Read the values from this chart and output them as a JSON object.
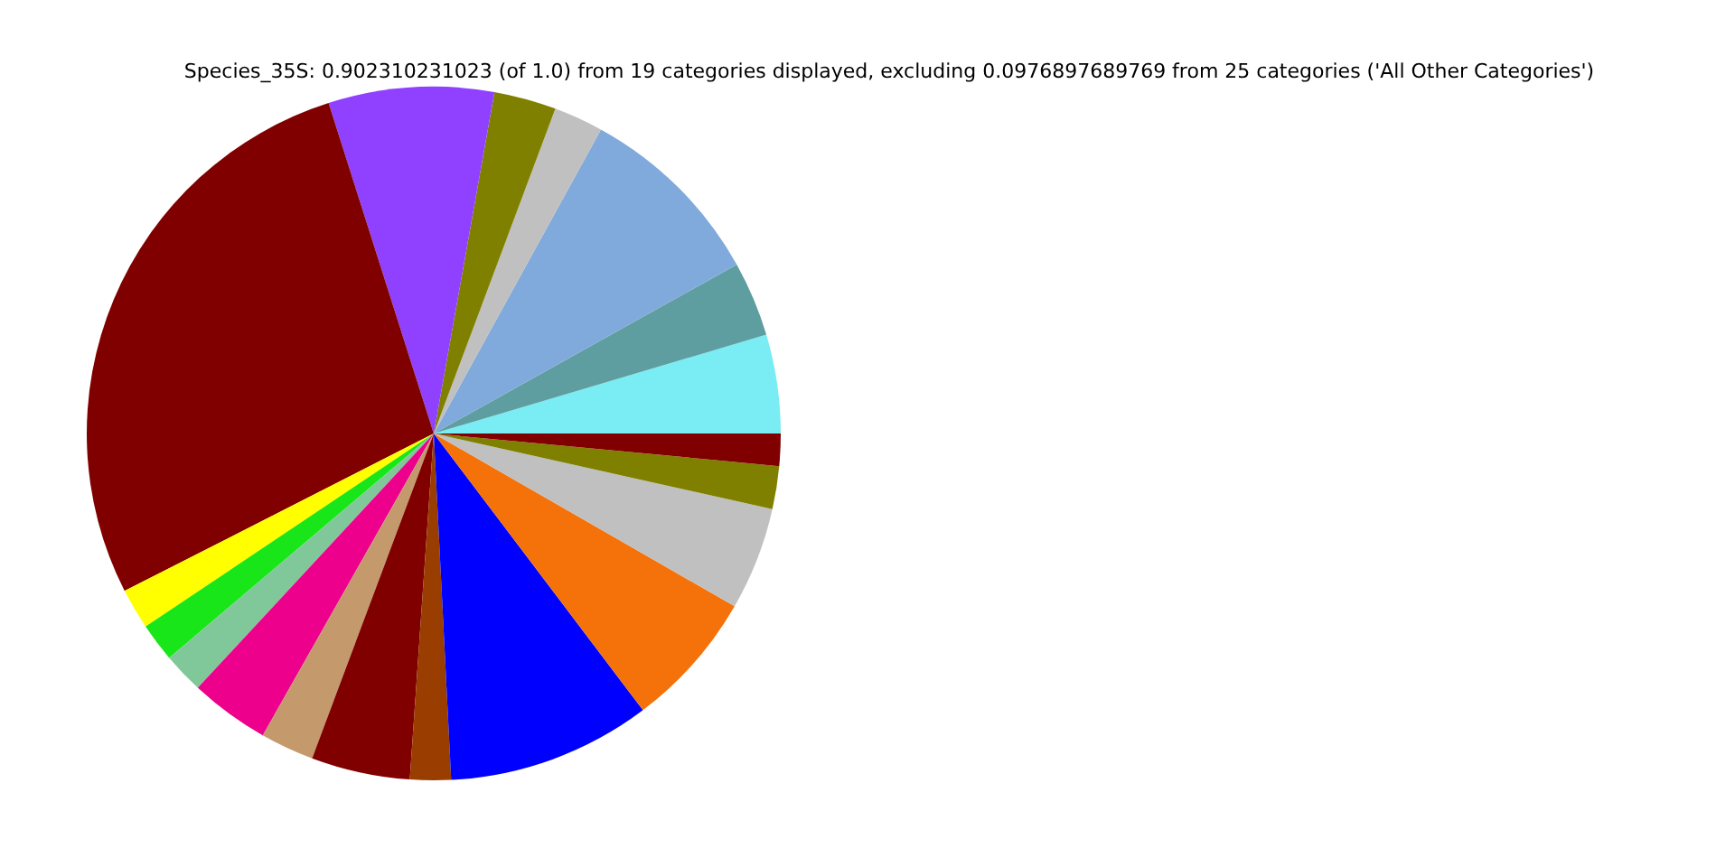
{
  "chart_data": {
    "type": "pie",
    "title": "Species_35S: 0.902310231023 (of 1.0) from 19 categories displayed, excluding 0.0976897689769 from 25 categories ('All Other Categories')",
    "categories": [
      null,
      null,
      null,
      null,
      null,
      null,
      null,
      null,
      null,
      null,
      null,
      null,
      null,
      null,
      null,
      null,
      null,
      null,
      null
    ],
    "values": [
      4.6,
      3.5,
      8.9,
      2.3,
      2.9,
      7.7,
      27.6,
      1.9,
      1.8,
      1.9,
      3.7,
      2.5,
      4.6,
      1.9,
      9.5,
      6.4,
      4.8,
      2.0,
      1.5
    ],
    "colors": [
      "#7aecf4",
      "#5f9ea0",
      "#7faadb",
      "#c0c0c0",
      "#808000",
      "#9040ff",
      "#800000",
      "#ffff00",
      "#19e619",
      "#80c89a",
      "#ec008c",
      "#c49a6c",
      "#800000",
      "#993d00",
      "#0000ff",
      "#f47209",
      "#c0c0c0",
      "#808000",
      "#800000"
    ]
  }
}
